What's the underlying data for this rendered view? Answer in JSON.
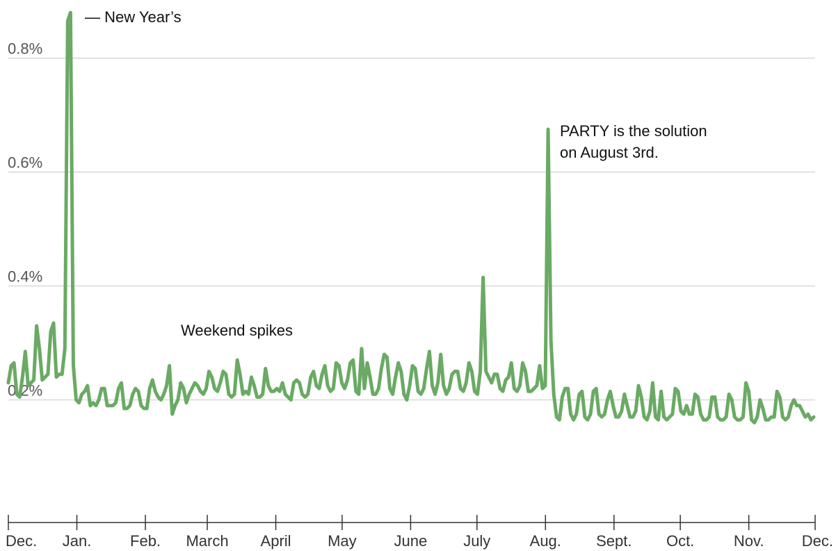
{
  "chart_data": {
    "type": "line",
    "title": "",
    "xlabel": "",
    "ylabel": "",
    "x_range": [
      "Dec. 1",
      "Dec. 1"
    ],
    "ylim": [
      0,
      0.9
    ],
    "y_ticks": [
      {
        "value": 0.2,
        "label": "0.2%"
      },
      {
        "value": 0.4,
        "label": "0.4%"
      },
      {
        "value": 0.6,
        "label": "0.6%"
      },
      {
        "value": 0.8,
        "label": "0.8%"
      }
    ],
    "x_ticks": [
      {
        "day": 0,
        "label": "Dec."
      },
      {
        "day": 31,
        "label": "Jan."
      },
      {
        "day": 62,
        "label": "Feb."
      },
      {
        "day": 90,
        "label": "March"
      },
      {
        "day": 121,
        "label": "April"
      },
      {
        "day": 151,
        "label": "May"
      },
      {
        "day": 182,
        "label": "June"
      },
      {
        "day": 212,
        "label": "July"
      },
      {
        "day": 243,
        "label": "Aug."
      },
      {
        "day": 274,
        "label": "Sept."
      },
      {
        "day": 304,
        "label": "Oct."
      },
      {
        "day": 335,
        "label": "Nov."
      },
      {
        "day": 365,
        "label": "Dec."
      }
    ],
    "grid": true,
    "line_color": "#6aaa64",
    "series": [
      {
        "values": [
          [
            0,
            0.23
          ],
          [
            1,
            0.26
          ],
          [
            2,
            0.265
          ],
          [
            3,
            0.21
          ],
          [
            4,
            0.205
          ],
          [
            5,
            0.24
          ],
          [
            6,
            0.285
          ],
          [
            7,
            0.225
          ],
          [
            8,
            0.23
          ],
          [
            9,
            0.235
          ],
          [
            10,
            0.33
          ],
          [
            11,
            0.29
          ],
          [
            12,
            0.235
          ],
          [
            13,
            0.24
          ],
          [
            14,
            0.245
          ],
          [
            15,
            0.32
          ],
          [
            16,
            0.335
          ],
          [
            17,
            0.24
          ],
          [
            18,
            0.245
          ],
          [
            19,
            0.245
          ],
          [
            20,
            0.29
          ],
          [
            21,
            0.865
          ],
          [
            22,
            0.88
          ],
          [
            23,
            0.26
          ],
          [
            24,
            0.2
          ],
          [
            25,
            0.195
          ],
          [
            26,
            0.21
          ],
          [
            27,
            0.215
          ],
          [
            28,
            0.225
          ],
          [
            29,
            0.19
          ],
          [
            30,
            0.195
          ],
          [
            31,
            0.19
          ],
          [
            32,
            0.2
          ],
          [
            33,
            0.22
          ],
          [
            34,
            0.22
          ],
          [
            35,
            0.19
          ],
          [
            36,
            0.19
          ],
          [
            37,
            0.19
          ],
          [
            38,
            0.195
          ],
          [
            39,
            0.22
          ],
          [
            40,
            0.23
          ],
          [
            41,
            0.185
          ],
          [
            42,
            0.185
          ],
          [
            43,
            0.19
          ],
          [
            44,
            0.21
          ],
          [
            45,
            0.22
          ],
          [
            46,
            0.215
          ],
          [
            47,
            0.19
          ],
          [
            48,
            0.185
          ],
          [
            49,
            0.185
          ],
          [
            50,
            0.22
          ],
          [
            51,
            0.235
          ],
          [
            52,
            0.215
          ],
          [
            53,
            0.205
          ],
          [
            54,
            0.2
          ],
          [
            55,
            0.21
          ],
          [
            56,
            0.225
          ],
          [
            57,
            0.26
          ],
          [
            58,
            0.175
          ],
          [
            59,
            0.19
          ],
          [
            60,
            0.2
          ],
          [
            61,
            0.23
          ],
          [
            62,
            0.22
          ],
          [
            63,
            0.195
          ],
          [
            64,
            0.21
          ],
          [
            65,
            0.22
          ],
          [
            66,
            0.23
          ],
          [
            67,
            0.225
          ],
          [
            68,
            0.215
          ],
          [
            69,
            0.21
          ],
          [
            70,
            0.22
          ],
          [
            71,
            0.25
          ],
          [
            72,
            0.24
          ],
          [
            73,
            0.22
          ],
          [
            74,
            0.215
          ],
          [
            75,
            0.23
          ],
          [
            76,
            0.25
          ],
          [
            77,
            0.245
          ],
          [
            78,
            0.21
          ],
          [
            79,
            0.205
          ],
          [
            80,
            0.21
          ],
          [
            81,
            0.27
          ],
          [
            82,
            0.245
          ],
          [
            83,
            0.21
          ],
          [
            84,
            0.215
          ],
          [
            85,
            0.21
          ],
          [
            86,
            0.24
          ],
          [
            87,
            0.225
          ],
          [
            88,
            0.205
          ],
          [
            89,
            0.205
          ],
          [
            90,
            0.21
          ],
          [
            91,
            0.255
          ],
          [
            92,
            0.225
          ],
          [
            93,
            0.215
          ],
          [
            94,
            0.215
          ],
          [
            95,
            0.22
          ],
          [
            96,
            0.215
          ],
          [
            97,
            0.23
          ],
          [
            98,
            0.21
          ],
          [
            99,
            0.205
          ],
          [
            100,
            0.2
          ],
          [
            101,
            0.23
          ],
          [
            102,
            0.235
          ],
          [
            103,
            0.23
          ],
          [
            104,
            0.21
          ],
          [
            105,
            0.205
          ],
          [
            106,
            0.21
          ],
          [
            107,
            0.24
          ],
          [
            108,
            0.25
          ],
          [
            109,
            0.225
          ],
          [
            110,
            0.22
          ],
          [
            111,
            0.245
          ],
          [
            112,
            0.26
          ],
          [
            113,
            0.225
          ],
          [
            114,
            0.215
          ],
          [
            115,
            0.22
          ],
          [
            116,
            0.265
          ],
          [
            117,
            0.26
          ],
          [
            118,
            0.23
          ],
          [
            119,
            0.22
          ],
          [
            120,
            0.235
          ],
          [
            121,
            0.265
          ],
          [
            122,
            0.27
          ],
          [
            123,
            0.215
          ],
          [
            124,
            0.21
          ],
          [
            125,
            0.29
          ],
          [
            126,
            0.22
          ],
          [
            127,
            0.265
          ],
          [
            128,
            0.24
          ],
          [
            129,
            0.21
          ],
          [
            130,
            0.21
          ],
          [
            131,
            0.22
          ],
          [
            132,
            0.255
          ],
          [
            133,
            0.28
          ],
          [
            134,
            0.275
          ],
          [
            135,
            0.22
          ],
          [
            136,
            0.21
          ],
          [
            137,
            0.24
          ],
          [
            138,
            0.265
          ],
          [
            139,
            0.25
          ],
          [
            140,
            0.21
          ],
          [
            141,
            0.2
          ],
          [
            142,
            0.225
          ],
          [
            143,
            0.26
          ],
          [
            144,
            0.255
          ],
          [
            145,
            0.215
          ],
          [
            146,
            0.21
          ],
          [
            147,
            0.22
          ],
          [
            148,
            0.255
          ],
          [
            149,
            0.285
          ],
          [
            150,
            0.225
          ],
          [
            151,
            0.21
          ],
          [
            152,
            0.23
          ],
          [
            153,
            0.28
          ],
          [
            154,
            0.225
          ],
          [
            155,
            0.21
          ],
          [
            156,
            0.22
          ],
          [
            157,
            0.245
          ],
          [
            158,
            0.25
          ],
          [
            159,
            0.25
          ],
          [
            160,
            0.22
          ],
          [
            161,
            0.215
          ],
          [
            162,
            0.23
          ],
          [
            163,
            0.265
          ],
          [
            164,
            0.25
          ],
          [
            165,
            0.215
          ],
          [
            166,
            0.21
          ],
          [
            167,
            0.25
          ],
          [
            168,
            0.415
          ],
          [
            169,
            0.25
          ],
          [
            170,
            0.24
          ],
          [
            171,
            0.23
          ],
          [
            172,
            0.245
          ],
          [
            173,
            0.245
          ],
          [
            174,
            0.22
          ],
          [
            175,
            0.215
          ],
          [
            176,
            0.235
          ],
          [
            177,
            0.24
          ],
          [
            178,
            0.265
          ],
          [
            179,
            0.22
          ],
          [
            180,
            0.215
          ],
          [
            181,
            0.225
          ],
          [
            182,
            0.265
          ],
          [
            183,
            0.25
          ],
          [
            184,
            0.215
          ],
          [
            185,
            0.215
          ],
          [
            186,
            0.22
          ],
          [
            187,
            0.225
          ],
          [
            188,
            0.26
          ],
          [
            189,
            0.22
          ],
          [
            190,
            0.225
          ],
          [
            191,
            0.675
          ],
          [
            192,
            0.305
          ],
          [
            193,
            0.21
          ],
          [
            194,
            0.17
          ],
          [
            195,
            0.165
          ],
          [
            196,
            0.205
          ],
          [
            197,
            0.22
          ],
          [
            198,
            0.22
          ],
          [
            199,
            0.175
          ],
          [
            200,
            0.165
          ],
          [
            201,
            0.175
          ],
          [
            202,
            0.21
          ],
          [
            203,
            0.215
          ],
          [
            204,
            0.17
          ],
          [
            205,
            0.165
          ],
          [
            206,
            0.175
          ],
          [
            207,
            0.215
          ],
          [
            208,
            0.22
          ],
          [
            209,
            0.175
          ],
          [
            210,
            0.17
          ],
          [
            211,
            0.175
          ],
          [
            212,
            0.2
          ],
          [
            213,
            0.215
          ],
          [
            214,
            0.19
          ],
          [
            215,
            0.17
          ],
          [
            216,
            0.17
          ],
          [
            217,
            0.18
          ],
          [
            218,
            0.21
          ],
          [
            219,
            0.19
          ],
          [
            220,
            0.17
          ],
          [
            221,
            0.17
          ],
          [
            222,
            0.18
          ],
          [
            223,
            0.225
          ],
          [
            224,
            0.205
          ],
          [
            225,
            0.17
          ],
          [
            226,
            0.165
          ],
          [
            227,
            0.18
          ],
          [
            228,
            0.23
          ],
          [
            229,
            0.17
          ],
          [
            230,
            0.165
          ],
          [
            231,
            0.215
          ],
          [
            232,
            0.17
          ],
          [
            233,
            0.165
          ],
          [
            234,
            0.17
          ],
          [
            235,
            0.175
          ],
          [
            236,
            0.22
          ],
          [
            237,
            0.215
          ],
          [
            238,
            0.18
          ],
          [
            239,
            0.175
          ],
          [
            240,
            0.19
          ],
          [
            241,
            0.175
          ],
          [
            242,
            0.175
          ],
          [
            243,
            0.21
          ],
          [
            244,
            0.205
          ],
          [
            245,
            0.175
          ],
          [
            246,
            0.165
          ],
          [
            247,
            0.165
          ],
          [
            248,
            0.17
          ],
          [
            249,
            0.205
          ],
          [
            250,
            0.205
          ],
          [
            251,
            0.17
          ],
          [
            252,
            0.165
          ],
          [
            253,
            0.165
          ],
          [
            254,
            0.17
          ],
          [
            255,
            0.21
          ],
          [
            256,
            0.2
          ],
          [
            257,
            0.17
          ],
          [
            258,
            0.165
          ],
          [
            259,
            0.165
          ],
          [
            260,
            0.17
          ],
          [
            261,
            0.23
          ],
          [
            262,
            0.215
          ],
          [
            263,
            0.165
          ],
          [
            264,
            0.16
          ],
          [
            265,
            0.17
          ],
          [
            266,
            0.2
          ],
          [
            267,
            0.185
          ],
          [
            268,
            0.165
          ],
          [
            269,
            0.165
          ],
          [
            270,
            0.17
          ],
          [
            271,
            0.17
          ],
          [
            272,
            0.215
          ],
          [
            273,
            0.205
          ],
          [
            274,
            0.17
          ],
          [
            275,
            0.165
          ],
          [
            276,
            0.17
          ],
          [
            277,
            0.19
          ],
          [
            278,
            0.2
          ],
          [
            279,
            0.19
          ],
          [
            280,
            0.19
          ],
          [
            281,
            0.18
          ],
          [
            282,
            0.17
          ],
          [
            283,
            0.175
          ],
          [
            284,
            0.165
          ],
          [
            285,
            0.17
          ]
        ]
      }
    ],
    "annotations": [
      {
        "lines": [
          "— New Year’s"
        ],
        "day": 22,
        "value": 0.88
      },
      {
        "lines": [
          "PARTY is the solution",
          "on August 3rd."
        ],
        "day": 191,
        "value": 0.675
      },
      {
        "lines": [
          "Weekend spikes"
        ],
        "day": 66,
        "value": 0.3
      }
    ]
  }
}
